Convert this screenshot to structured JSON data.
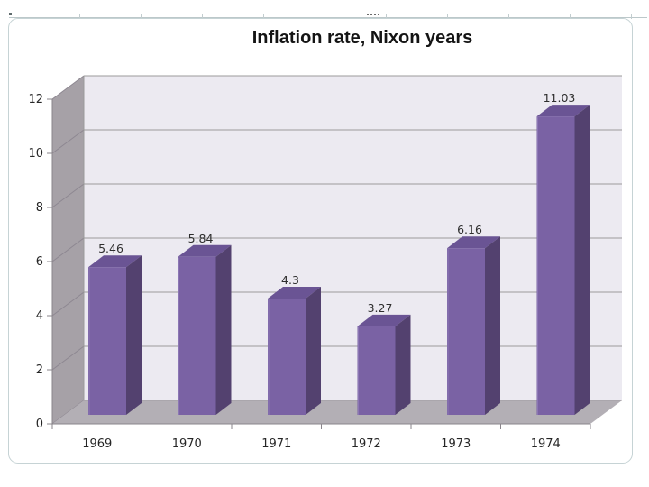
{
  "chart_data": {
    "type": "bar",
    "subtype": "3d-column",
    "title": "Inflation rate, Nixon years",
    "categories": [
      "1969",
      "1970",
      "1971",
      "1972",
      "1973",
      "1974"
    ],
    "values": [
      5.46,
      5.84,
      4.3,
      3.27,
      6.16,
      11.03
    ],
    "value_labels": [
      "5.46",
      "5.84",
      "4.3",
      "3.27",
      "6.16",
      "11.03"
    ],
    "xlabel": "",
    "ylabel": "",
    "ylim": [
      0,
      12
    ],
    "yticks": [
      0,
      2,
      4,
      6,
      8,
      10,
      12
    ],
    "grid": true,
    "legend": "none"
  },
  "colors": {
    "bar_front": "#7a62a4",
    "bar_side": "#53416f",
    "bar_top": "#6a5494",
    "bar_edge": "#8b76b4",
    "back_wall": "#eceaf1",
    "side_wall": "#a6a1a7",
    "floor": "#b3afb5",
    "gridline": "#9b9b9b",
    "side_gridline": "#8d8791",
    "axis": "#8a858b",
    "tick_label": "#262626",
    "value_label": "#2e2e2e"
  }
}
